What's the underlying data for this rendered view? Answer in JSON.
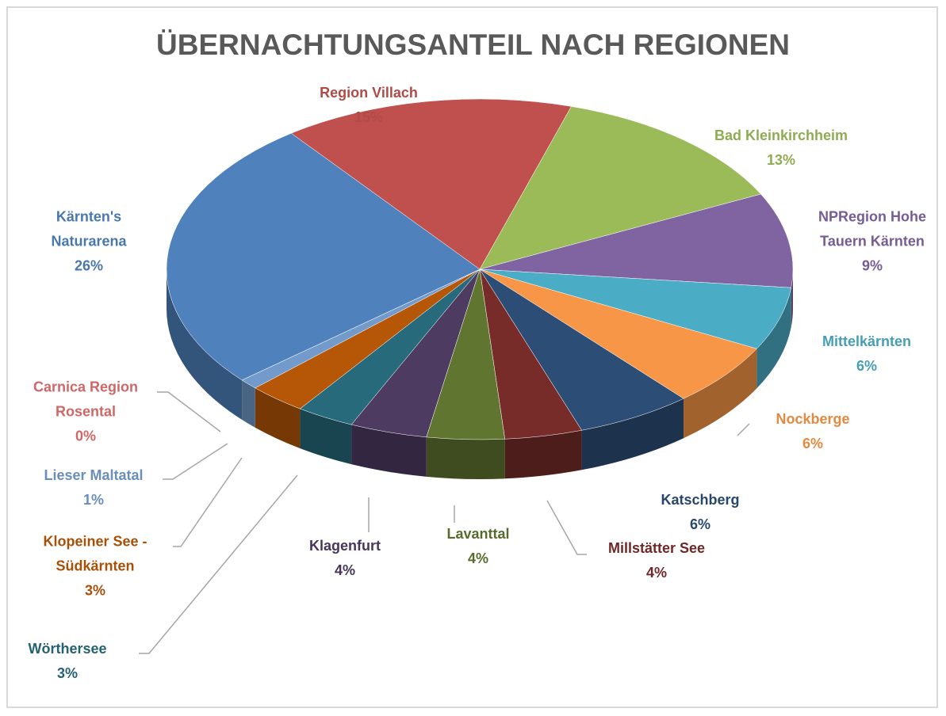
{
  "chart_data": {
    "type": "pie",
    "title": "ÜBERNACHTUNGSANTEIL NACH REGIONEN",
    "categories": [
      "Region Villach",
      "Bad Kleinkirchheim",
      "NPRegion Hohe Tauern Kärnten",
      "Mittelkärnten",
      "Nockberge",
      "Katschberg",
      "Millstätter See",
      "Lavanttal",
      "Klagenfurt",
      "Wörthersee",
      "Klopeiner See - Südkärnten",
      "Lieser Maltatal",
      "Carnica Region Rosental",
      "Kärnten's Naturarena"
    ],
    "values": [
      15,
      13,
      9,
      6,
      6,
      6,
      4,
      4,
      4,
      3,
      3,
      1,
      0,
      26
    ],
    "value_labels": [
      "15%",
      "13%",
      "9%",
      "6%",
      "6%",
      "6%",
      "4%",
      "4%",
      "4%",
      "3%",
      "3%",
      "1%",
      "0%",
      "26%"
    ],
    "colors": [
      "#c0504d",
      "#9bbb59",
      "#8064a2",
      "#4bacc6",
      "#f79646",
      "#2c4d75",
      "#772c2a",
      "#5f7530",
      "#4d3b62",
      "#276a7c",
      "#b65708",
      "#729aca",
      "#e07070",
      "#4f81bd"
    ]
  }
}
